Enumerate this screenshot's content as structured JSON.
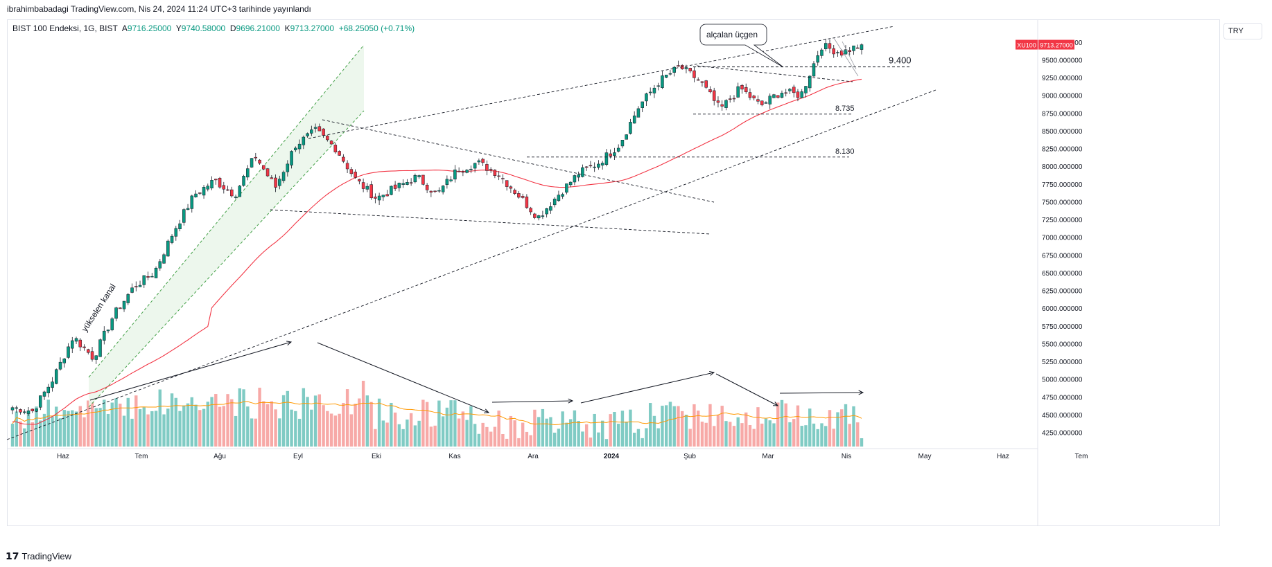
{
  "header": {
    "publish_text": "ibrahimbabadagi TradingView.com, Nis 24, 2024 11:24 UTC+3 tarihinde yayınlandı"
  },
  "legend": {
    "symbol": "BIST 100 Endeksi, 1G, BIST",
    "open_label": "A",
    "open": "9716.25000",
    "high_label": "Y",
    "high": "9740.58000",
    "low_label": "D",
    "low": "9696.21000",
    "close_label": "K",
    "close": "9713.27000",
    "change": "+68.25050 (+0.71%)"
  },
  "currency": "TRY",
  "price_tag": {
    "ticker": "XU100",
    "price": "9713.27000"
  },
  "footer": {
    "brand": "TradingView"
  },
  "colors": {
    "up": "#089981",
    "down": "#f23645",
    "up_vol": "#80cbc4",
    "down_vol": "#f7a9a7",
    "ma": "#f23645",
    "vol_ma": "#ff9800",
    "channel": "#43a047"
  },
  "chart_data": {
    "type": "candlestick",
    "x_ticks": [
      "Haz",
      "Tem",
      "Ağu",
      "Eyl",
      "Eki",
      "Kas",
      "Ara",
      "2024",
      "Şub",
      "Mar",
      "Nis",
      "May",
      "Haz",
      "Tem"
    ],
    "y_ticks": [
      "9750.000000",
      "9500.000000",
      "9250.000000",
      "9000.000000",
      "8750.000000",
      "8500.000000",
      "8250.000000",
      "8000.000000",
      "7750.000000",
      "7500.000000",
      "7250.000000",
      "7000.000000",
      "6750.000000",
      "6500.000000",
      "6250.000000",
      "6000.000000",
      "5750.000000",
      "5500.000000",
      "5250.000000",
      "5000.000000",
      "4750.000000",
      "4500.000000",
      "4250.000000"
    ],
    "ylim": [
      4050,
      10050
    ],
    "price_anchors": [
      {
        "date": "Haz",
        "close": 4600
      },
      {
        "date": "",
        "close": 4550
      },
      {
        "date": "",
        "close": 5000
      },
      {
        "date": "",
        "close": 5600
      },
      {
        "date": "",
        "close": 5300
      },
      {
        "date": "Tem",
        "close": 5900
      },
      {
        "date": "",
        "close": 6300
      },
      {
        "date": "",
        "close": 6500
      },
      {
        "date": "Ağu",
        "close": 7100
      },
      {
        "date": "",
        "close": 7600
      },
      {
        "date": "",
        "close": 7800
      },
      {
        "date": "",
        "close": 7600
      },
      {
        "date": "Eyl",
        "close": 8150
      },
      {
        "date": "",
        "close": 7700
      },
      {
        "date": "",
        "close": 8300
      },
      {
        "date": "",
        "close": 8500
      },
      {
        "date": "Eki",
        "close": 8250
      },
      {
        "date": "",
        "close": 7800
      },
      {
        "date": "",
        "close": 7550
      },
      {
        "date": "",
        "close": 7700
      },
      {
        "date": "Kas",
        "close": 7850
      },
      {
        "date": "",
        "close": 7600
      },
      {
        "date": "",
        "close": 7950
      },
      {
        "date": "",
        "close": 8050
      },
      {
        "date": "Ara",
        "close": 7900
      },
      {
        "date": "",
        "close": 7600
      },
      {
        "date": "",
        "close": 7280
      },
      {
        "date": "",
        "close": 7600
      },
      {
        "date": "2024",
        "close": 7900
      },
      {
        "date": "",
        "close": 8050
      },
      {
        "date": "",
        "close": 8300
      },
      {
        "date": "",
        "close": 8850
      },
      {
        "date": "Şub",
        "close": 9200
      },
      {
        "date": "",
        "close": 9400
      },
      {
        "date": "",
        "close": 9200
      },
      {
        "date": "",
        "close": 8800
      },
      {
        "date": "Mar",
        "close": 9100
      },
      {
        "date": "",
        "close": 8850
      },
      {
        "date": "",
        "close": 9050
      },
      {
        "date": "",
        "close": 9000
      },
      {
        "date": "Nis",
        "close": 9700
      },
      {
        "date": "",
        "close": 9600
      },
      {
        "date": "",
        "close": 9713
      }
    ],
    "levels": [
      {
        "label": "9.400",
        "value": 9400
      },
      {
        "label": "8.735",
        "value": 8735
      },
      {
        "label": "8.130",
        "value": 8130
      }
    ],
    "annotations": [
      {
        "text": "alçalan üçgen"
      },
      {
        "text": "yükselen kanal"
      }
    ]
  }
}
